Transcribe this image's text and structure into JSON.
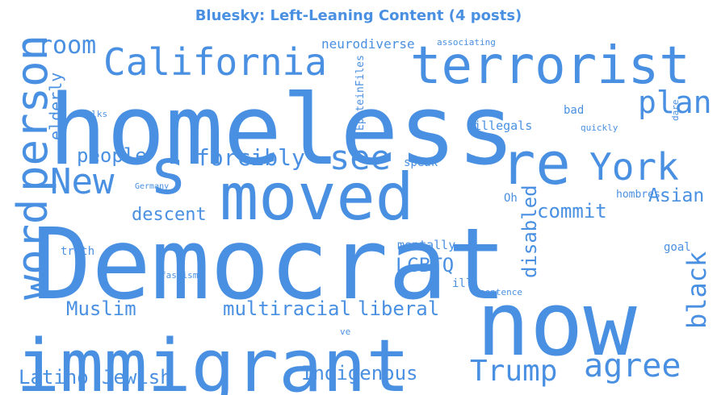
{
  "chart_data": {
    "type": "wordcloud",
    "title": "Bluesky: Left-Leaning Content (4 posts)",
    "color": "#4a90e2",
    "words": [
      {
        "text": "homeless",
        "weight": 100
      },
      {
        "text": "Democrat",
        "weight": 98
      },
      {
        "text": "immigrant",
        "weight": 80
      },
      {
        "text": "now",
        "weight": 78
      },
      {
        "text": "moved",
        "weight": 60
      },
      {
        "text": "terrorist",
        "weight": 48
      },
      {
        "text": "re",
        "weight": 58
      },
      {
        "text": "s",
        "weight": 55
      },
      {
        "text": "California",
        "weight": 40
      },
      {
        "text": "person",
        "weight": 38
      },
      {
        "text": "word",
        "weight": 37
      },
      {
        "text": "York",
        "weight": 32
      },
      {
        "text": "New",
        "weight": 31
      },
      {
        "text": "see",
        "weight": 30
      },
      {
        "text": "agree",
        "weight": 30
      },
      {
        "text": "plan",
        "weight": 28
      },
      {
        "text": "Trump",
        "weight": 26
      },
      {
        "text": "black",
        "weight": 24
      },
      {
        "text": "room",
        "weight": 22
      },
      {
        "text": "forcibly",
        "weight": 20
      },
      {
        "text": "people",
        "weight": 18
      },
      {
        "text": "Muslim",
        "weight": 18
      },
      {
        "text": "multiracial",
        "weight": 18
      },
      {
        "text": "liberal",
        "weight": 18
      },
      {
        "text": "Latino",
        "weight": 18
      },
      {
        "text": "Jewish",
        "weight": 17
      },
      {
        "text": "Indigenous",
        "weight": 17
      },
      {
        "text": "commit",
        "weight": 17
      },
      {
        "text": "disabled",
        "weight": 17
      },
      {
        "text": "LGBTQ",
        "weight": 17
      },
      {
        "text": "Asian",
        "weight": 16
      },
      {
        "text": "descent",
        "weight": 16
      },
      {
        "text": "elderly",
        "weight": 15
      },
      {
        "text": "neurodiverse",
        "weight": 12
      },
      {
        "text": "illegals",
        "weight": 11
      },
      {
        "text": "mentally",
        "weight": 11
      },
      {
        "text": "EpsteinFiles",
        "weight": 10
      },
      {
        "text": "speak",
        "weight": 10
      },
      {
        "text": "truth",
        "weight": 10
      },
      {
        "text": "bad",
        "weight": 10
      },
      {
        "text": "hombres",
        "weight": 10
      },
      {
        "text": "goal",
        "weight": 10
      },
      {
        "text": "Oh",
        "weight": 10
      },
      {
        "text": "ill",
        "weight": 10
      },
      {
        "text": "associating",
        "weight": 9
      },
      {
        "text": "folks",
        "weight": 9
      },
      {
        "text": "quickly",
        "weight": 9
      },
      {
        "text": "dare",
        "weight": 9
      },
      {
        "text": "Germany",
        "weight": 9
      },
      {
        "text": "fascism",
        "weight": 9
      },
      {
        "text": "sentence",
        "weight": 9
      },
      {
        "text": "ve",
        "weight": 9
      }
    ]
  }
}
